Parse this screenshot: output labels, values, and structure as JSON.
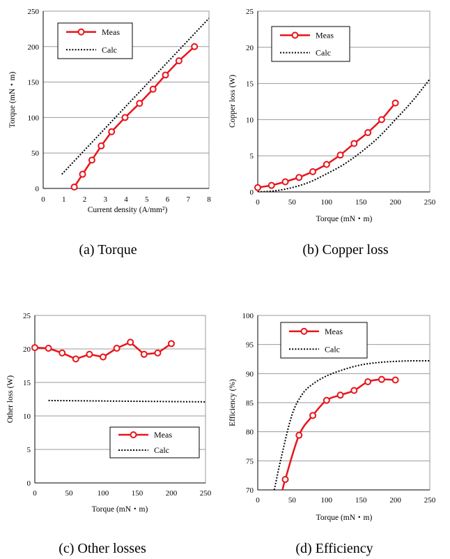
{
  "colors": {
    "meas": "#e8141a",
    "calc": "#000000",
    "grid": "#9a9a9a",
    "axis": "#000000"
  },
  "chart_data": [
    {
      "id": "torque",
      "type": "line",
      "caption": "(a) Torque",
      "xlabel": "Current density (A/mm²)",
      "ylabel": "Torque (mN・m)",
      "xlim": [
        0,
        8
      ],
      "ylim": [
        0,
        250
      ],
      "xticks": [
        "0",
        "1",
        "2",
        "3",
        "4",
        "5",
        "6",
        "7",
        "8"
      ],
      "yticks": [
        "0",
        "50",
        "100",
        "150",
        "200",
        "250"
      ],
      "grid": "horizontal",
      "legend_position": "top-left",
      "series": [
        {
          "name": "Meas",
          "style": "line-marker",
          "x": [
            1.5,
            1.9,
            2.35,
            2.8,
            3.3,
            3.95,
            4.65,
            5.3,
            5.9,
            6.55,
            7.3
          ],
          "y": [
            2,
            20,
            40,
            60,
            80,
            100,
            120,
            140,
            160,
            180,
            200
          ]
        },
        {
          "name": "Calc",
          "style": "dotted",
          "x": [
            0.9,
            8.0
          ],
          "y": [
            20,
            240
          ]
        }
      ]
    },
    {
      "id": "copper",
      "type": "line",
      "caption": "(b) Copper loss",
      "xlabel": "Torque (mN・m)",
      "ylabel": "Copper loss (W)",
      "xlim": [
        0,
        250
      ],
      "ylim": [
        0,
        25
      ],
      "xticks": [
        "0",
        "50",
        "100",
        "150",
        "200",
        "250"
      ],
      "yticks": [
        "0",
        "5",
        "10",
        "15",
        "20",
        "25"
      ],
      "grid": "horizontal",
      "legend_position": "top-left",
      "series": [
        {
          "name": "Meas",
          "style": "line-marker",
          "x": [
            0,
            20,
            40,
            60,
            80,
            100,
            120,
            140,
            160,
            180,
            200
          ],
          "y": [
            0.6,
            0.9,
            1.4,
            2.0,
            2.8,
            3.8,
            5.1,
            6.7,
            8.2,
            10.0,
            12.3
          ]
        },
        {
          "name": "Calc",
          "style": "dotted",
          "x": [
            0,
            25,
            50,
            75,
            100,
            125,
            150,
            175,
            200,
            225,
            250
          ],
          "y": [
            0,
            0.15,
            0.6,
            1.35,
            2.5,
            3.8,
            5.5,
            7.5,
            10.0,
            12.6,
            15.6
          ]
        }
      ]
    },
    {
      "id": "other",
      "type": "line",
      "caption": "(c) Other losses",
      "xlabel": "Torque (mN・m)",
      "ylabel": "Other loss (W)",
      "xlim": [
        0,
        250
      ],
      "ylim": [
        0,
        25
      ],
      "xticks": [
        "0",
        "50",
        "100",
        "150",
        "200",
        "250"
      ],
      "yticks": [
        "0",
        "5",
        "10",
        "15",
        "20",
        "25"
      ],
      "grid": "horizontal",
      "legend_position": "bottom-right",
      "series": [
        {
          "name": "Meas",
          "style": "line-marker",
          "x": [
            0,
            20,
            40,
            60,
            80,
            100,
            120,
            140,
            160,
            180,
            200
          ],
          "y": [
            20.2,
            20.1,
            19.4,
            18.5,
            19.2,
            18.8,
            20.1,
            21.0,
            19.2,
            19.4,
            20.8
          ]
        },
        {
          "name": "Calc",
          "style": "dotted",
          "x": [
            20,
            250
          ],
          "y": [
            12.3,
            12.1
          ]
        }
      ]
    },
    {
      "id": "efficiency",
      "type": "line",
      "caption": "(d) Efficiency",
      "xlabel": "Torque (mN・m)",
      "ylabel": "Efficiency (%)",
      "xlim": [
        0,
        250
      ],
      "ylim": [
        70,
        100
      ],
      "xticks": [
        "0",
        "50",
        "100",
        "150",
        "200",
        "250"
      ],
      "yticks": [
        "70",
        "75",
        "80",
        "85",
        "90",
        "95",
        "100"
      ],
      "grid": "horizontal",
      "legend_position": "top-left",
      "series": [
        {
          "name": "Meas",
          "style": "line-marker-smooth",
          "x": [
            40,
            60,
            80,
            100,
            120,
            140,
            160,
            180,
            200
          ],
          "y": [
            71.8,
            79.4,
            82.8,
            85.4,
            86.3,
            87.1,
            88.6,
            89.0,
            88.9
          ],
          "curve_start": [
            36,
            70
          ]
        },
        {
          "name": "Calc",
          "style": "dotted",
          "x": [
            24,
            35,
            50,
            65,
            80,
            100,
            125,
            150,
            175,
            200,
            225,
            250
          ],
          "y": [
            70,
            76,
            83,
            86.5,
            88.2,
            89.6,
            90.7,
            91.5,
            91.9,
            92.1,
            92.2,
            92.2
          ]
        }
      ]
    }
  ]
}
